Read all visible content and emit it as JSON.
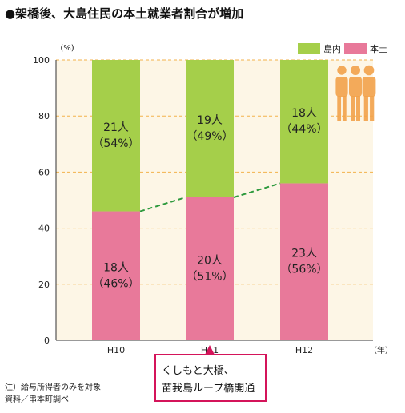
{
  "title": "●架橋後、大島住民の本土就業者割合が増加",
  "chart_data": {
    "type": "bar",
    "stacked": true,
    "categories": [
      "H10",
      "H11",
      "H12"
    ],
    "series": [
      {
        "name": "本土",
        "color": "#e8799a",
        "values": [
          46,
          51,
          56
        ],
        "labels": [
          "18人\n（46%）",
          "20人\n（51%）",
          "23人\n（56%）"
        ]
      },
      {
        "name": "島内",
        "color": "#a5cf4a",
        "values": [
          54,
          49,
          44
        ],
        "labels": [
          "21人\n（54%）",
          "19人\n（49%）",
          "18人\n（44%）"
        ]
      }
    ],
    "ylim": [
      0,
      100
    ],
    "yticks": [
      0,
      20,
      40,
      60,
      80,
      100
    ],
    "ylabel_unit": "(%)",
    "xlabel_unit": "（年）",
    "legend": [
      "島内",
      "本土"
    ],
    "legend_position": "top-right",
    "trend_line": {
      "series": "本土",
      "color": "#2e9a3e",
      "style": "dashed"
    },
    "grid": true,
    "annotation": {
      "category": "H11",
      "text": [
        "くしもと大橋、",
        "苗我島ループ橋開通"
      ]
    }
  },
  "notes": [
    "注）給与所得者のみを対象",
    "資料／串本町調べ"
  ],
  "colors": {
    "plot_background": "#fdf6e6",
    "grid": "#f3b24b",
    "annotation_border": "#d4145a",
    "icon": "#f2a24a"
  }
}
